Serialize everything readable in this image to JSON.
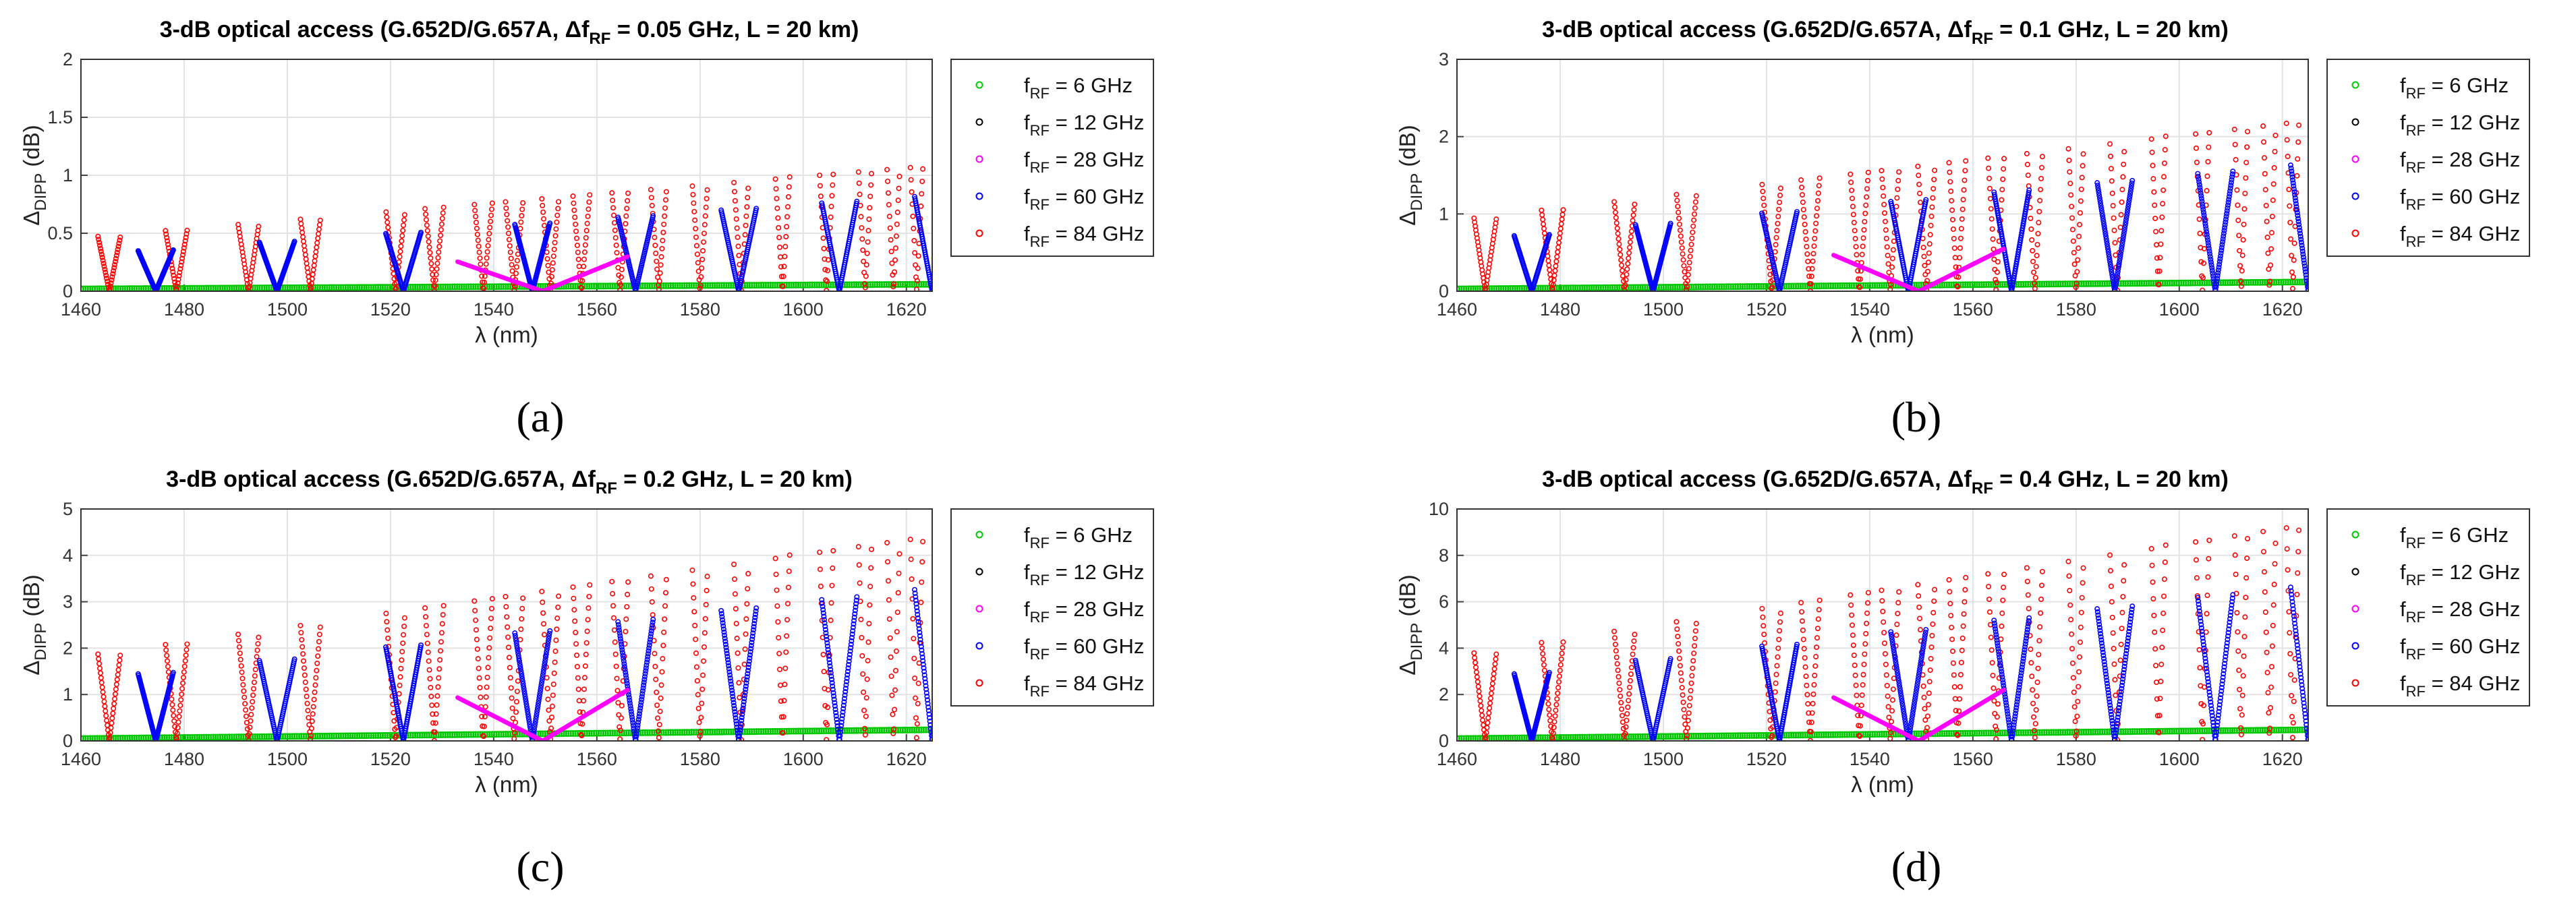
{
  "legend_entries": [
    {
      "label": "= 6 GHz",
      "sub": "RF",
      "color": "#00c800"
    },
    {
      "label": "= 12 GHz",
      "sub": "RF",
      "color": "#000000"
    },
    {
      "label": "= 28 GHz",
      "sub": "RF",
      "color": "#ff00ff"
    },
    {
      "label": "= 60 GHz",
      "sub": "RF",
      "color": "#0000ff"
    },
    {
      "label": "= 84 GHz",
      "sub": "RF",
      "color": "#ff0000"
    }
  ],
  "colors": {
    "f6": "#00c800",
    "f12": "#000000",
    "f28": "#ff00ff",
    "f60": "#0000ff",
    "f84": "#ff0000",
    "grid": "#e3e3e3"
  },
  "chart_data": [
    {
      "type": "scatter",
      "panel": "(a)",
      "title_pre": "3-dB optical access (G.652D/G.657A, ",
      "title_delta": "Δf",
      "title_sub": "RF",
      "title_post": " = 0.05 GHz, L = 20 km)",
      "xlabel": "λ (nm)",
      "ylabel": "Δ",
      "ylabel_sub": "DIPP",
      "ylabel_unit": " (dB)",
      "xlim": [
        1460,
        1625
      ],
      "ylim": [
        0,
        2
      ],
      "xticks": [
        1460,
        1480,
        1500,
        1520,
        1540,
        1560,
        1580,
        1600,
        1620
      ],
      "yticks": [
        0,
        0.5,
        1,
        1.5,
        2
      ],
      "series_peaks": {
        "84GHz_at_1465": 0.48,
        "84GHz_at_1620": 1.08,
        "60GHz_at_1475": 0.35,
        "60GHz_at_1620": 0.8,
        "28GHz_wing": 0.3,
        "6GHz_at_1625": 0.06
      }
    },
    {
      "type": "scatter",
      "panel": "(b)",
      "title_pre": "3-dB optical access (G.652D/G.657A, ",
      "title_delta": "Δf",
      "title_sub": "RF",
      "title_post": " = 0.1 GHz, L = 20 km)",
      "xlabel": "λ (nm)",
      "ylabel": "Δ",
      "ylabel_sub": "DIPP",
      "ylabel_unit": " (dB)",
      "xlim": [
        1460,
        1625
      ],
      "ylim": [
        0,
        3
      ],
      "xticks": [
        1460,
        1480,
        1500,
        1520,
        1540,
        1560,
        1580,
        1600,
        1620
      ],
      "yticks": [
        0,
        1,
        2,
        3
      ],
      "series_peaks": {
        "84GHz_at_1465": 0.96,
        "84GHz_at_1620": 2.2,
        "60GHz_at_1475": 0.72,
        "60GHz_at_1620": 1.6,
        "28GHz_wing": 0.55,
        "6GHz_at_1625": 0.12
      }
    },
    {
      "type": "scatter",
      "panel": "(c)",
      "title_pre": "3-dB optical access (G.652D/G.657A, ",
      "title_delta": "Δf",
      "title_sub": "RF",
      "title_post": " = 0.2 GHz, L = 20 km)",
      "xlabel": "λ (nm)",
      "ylabel": "Δ",
      "ylabel_sub": "DIPP",
      "ylabel_unit": " (dB)",
      "xlim": [
        1460,
        1625
      ],
      "ylim": [
        0,
        5
      ],
      "xticks": [
        1460,
        1480,
        1500,
        1520,
        1540,
        1560,
        1580,
        1600,
        1620
      ],
      "yticks": [
        0,
        1,
        2,
        3,
        4,
        5
      ],
      "series_peaks": {
        "84GHz_at_1465": 1.9,
        "84GHz_at_1620": 4.4,
        "60GHz_at_1475": 1.45,
        "60GHz_at_1620": 3.2,
        "28GHz_wing": 1.1,
        "6GHz_at_1625": 0.24
      }
    },
    {
      "type": "scatter",
      "panel": "(d)",
      "title_pre": "3-dB optical access (G.652D/G.657A, ",
      "title_delta": "Δf",
      "title_sub": "RF",
      "title_post": " = 0.4 GHz, L = 20 km)",
      "xlabel": "λ (nm)",
      "ylabel": "Δ",
      "ylabel_sub": "DIPP",
      "ylabel_unit": " (dB)",
      "xlim": [
        1460,
        1625
      ],
      "ylim": [
        0,
        10
      ],
      "xticks": [
        1460,
        1480,
        1500,
        1520,
        1540,
        1560,
        1580,
        1600,
        1620
      ],
      "yticks": [
        0,
        2,
        4,
        6,
        8,
        10
      ],
      "series_peaks": {
        "84GHz_at_1465": 3.85,
        "84GHz_at_1620": 9.3,
        "60GHz_at_1475": 2.9,
        "60GHz_at_1620": 6.5,
        "28GHz_wing": 2.2,
        "6GHz_at_1625": 0.48
      }
    }
  ]
}
